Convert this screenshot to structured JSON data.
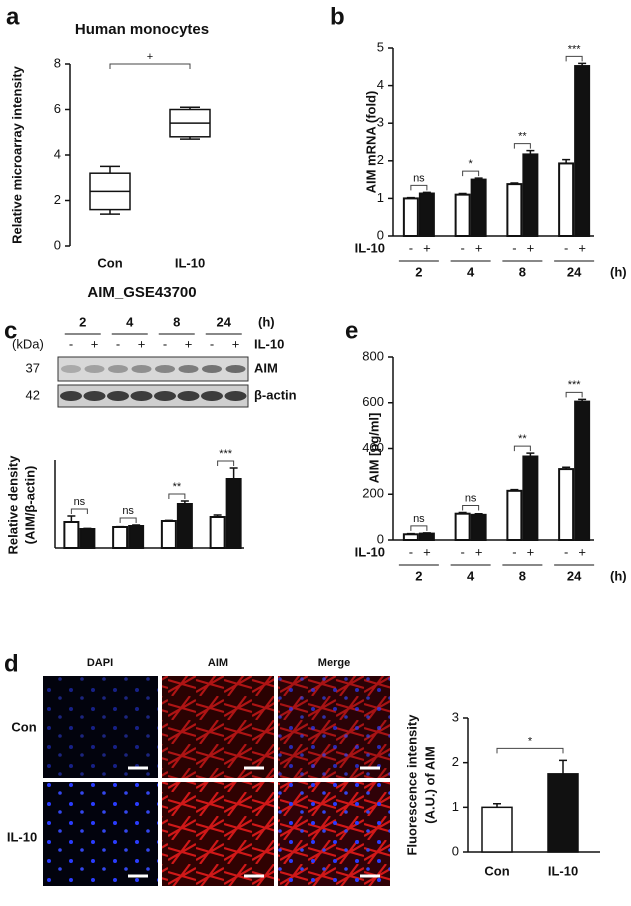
{
  "panel_labels": [
    "a",
    "b",
    "c",
    "d",
    "e"
  ],
  "blot": {
    "times": [
      "2",
      "4",
      "8",
      "24"
    ],
    "unit": "(h)",
    "kda_label": "(kDa)",
    "signs": [
      "-",
      "+"
    ],
    "treatment": "IL-10",
    "bands": [
      {
        "kda": "37",
        "name": "AIM"
      },
      {
        "kda": "42",
        "name": "β-actin"
      }
    ]
  },
  "micrographs": {
    "columns": [
      "DAPI",
      "AIM",
      "Merge"
    ],
    "rows": [
      "Con",
      "IL-10"
    ]
  },
  "chart_data": [
    {
      "type": "box",
      "title": "Human monocytes",
      "xlabel": "AIM_GSE43700",
      "ylabel": "Relative microarray intensity",
      "categories": [
        "Con",
        "IL-10"
      ],
      "boxes": [
        {
          "min": 1.4,
          "q1": 1.6,
          "median": 2.4,
          "q3": 3.2,
          "max": 3.5
        },
        {
          "min": 4.7,
          "q1": 4.8,
          "median": 5.4,
          "q3": 6.0,
          "max": 6.1
        }
      ],
      "ylim": [
        0,
        8
      ],
      "yticks": [
        0,
        2,
        4,
        6,
        8
      ],
      "annotation": "+"
    },
    {
      "type": "grouped_bar",
      "ylabel": "AIM mRNA (fold)",
      "groups": [
        "2",
        "4",
        "8",
        "24"
      ],
      "group_unit": "(h)",
      "treatment": "IL-10",
      "series": [
        {
          "name": "-",
          "color": "#ffffff",
          "values": [
            1.0,
            1.1,
            1.38,
            1.93
          ],
          "errors": [
            0.02,
            0.03,
            0.03,
            0.1
          ]
        },
        {
          "name": "+",
          "color": "#111111",
          "values": [
            1.13,
            1.5,
            2.17,
            4.52
          ],
          "errors": [
            0.03,
            0.04,
            0.1,
            0.07
          ]
        }
      ],
      "significance": [
        "ns",
        "*",
        "**",
        "***"
      ],
      "ylim": [
        0,
        5
      ],
      "yticks": [
        0,
        1,
        2,
        3,
        4,
        5
      ]
    },
    {
      "type": "grouped_bar",
      "ylabel": [
        "Relative density",
        "(AIM/β-actin)"
      ],
      "groups": [
        "2",
        "4",
        "8",
        "24"
      ],
      "series": [
        {
          "name": "-",
          "color": "#ffffff",
          "values": [
            1.3,
            1.05,
            1.35,
            1.55
          ],
          "errors": [
            0.3,
            0.02,
            0.03,
            0.1
          ]
        },
        {
          "name": "+",
          "color": "#111111",
          "values": [
            0.95,
            1.1,
            2.2,
            3.45
          ],
          "errors": [
            0.03,
            0.05,
            0.15,
            0.55
          ]
        }
      ],
      "significance": [
        "ns",
        "ns",
        "**",
        "***"
      ],
      "ylim": [
        0,
        4.4
      ]
    },
    {
      "type": "grouped_bar",
      "ylabel": "AIM [pg/ml]",
      "groups": [
        "2",
        "4",
        "8",
        "24"
      ],
      "group_unit": "(h)",
      "treatment": "IL-10",
      "series": [
        {
          "name": "-",
          "color": "#ffffff",
          "values": [
            25,
            115,
            215,
            310
          ],
          "errors": [
            3,
            5,
            5,
            8
          ]
        },
        {
          "name": "+",
          "color": "#111111",
          "values": [
            28,
            110,
            365,
            605
          ],
          "errors": [
            3,
            5,
            15,
            10
          ]
        }
      ],
      "significance": [
        "ns",
        "ns",
        "**",
        "***"
      ],
      "ylim": [
        0,
        800
      ],
      "yticks": [
        0,
        200,
        400,
        600,
        800
      ]
    },
    {
      "type": "bar",
      "ylabel": [
        "Fluorescence intensity",
        "(A.U.) of AIM"
      ],
      "categories": [
        "Con",
        "IL-10"
      ],
      "values": [
        1.0,
        1.75
      ],
      "errors": [
        0.08,
        0.3
      ],
      "colors": [
        "#ffffff",
        "#111111"
      ],
      "significance": [
        "*"
      ],
      "ylim": [
        0,
        3
      ],
      "yticks": [
        0,
        1,
        2,
        3
      ]
    }
  ]
}
